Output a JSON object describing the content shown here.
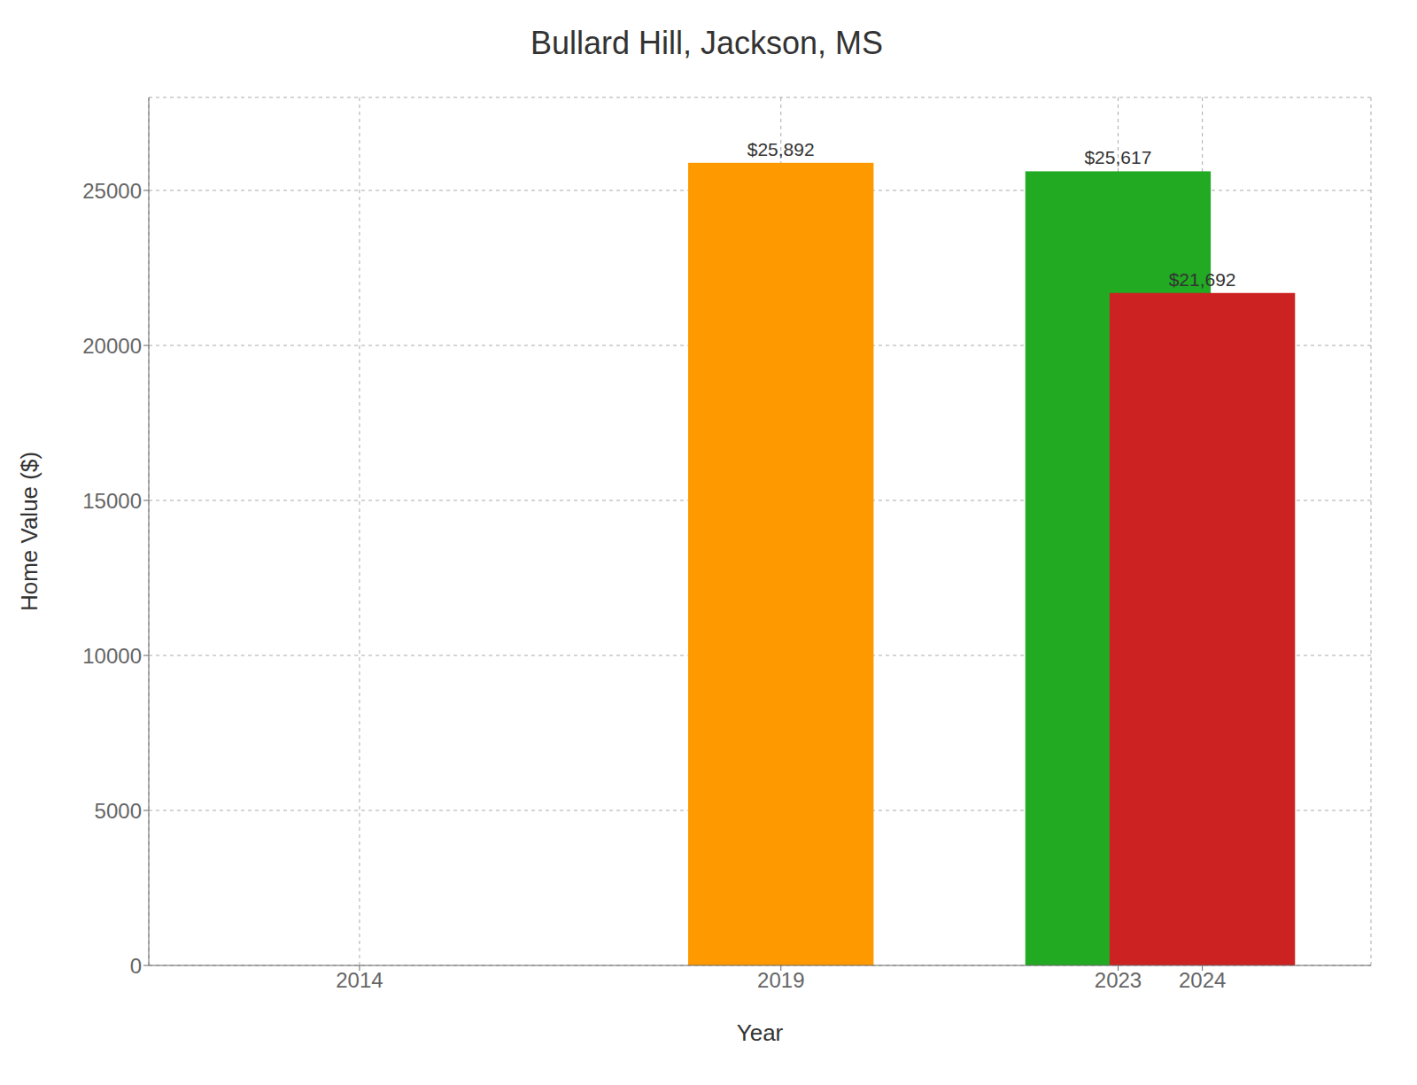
{
  "chart_data": {
    "type": "bar",
    "title": "Bullard Hill, Jackson, MS",
    "xlabel": "Year",
    "ylabel": "Home Value ($)",
    "x": [
      2014,
      2019,
      2023,
      2024
    ],
    "values": [
      0,
      25892,
      25617,
      21692
    ],
    "value_labels": [
      null,
      "$25,892",
      "$25,617",
      "$21,692"
    ],
    "colors": [
      "#ffffff",
      "#FF9900",
      "#22AA22",
      "#CC2222"
    ],
    "xlim": [
      2011.5,
      2026.0
    ],
    "xticks": [
      2014,
      2019,
      2023,
      2024
    ],
    "ylim": [
      0,
      28000
    ],
    "yticks": [
      0,
      5000,
      10000,
      15000,
      20000,
      25000
    ],
    "grid": true,
    "data_labels": true
  }
}
